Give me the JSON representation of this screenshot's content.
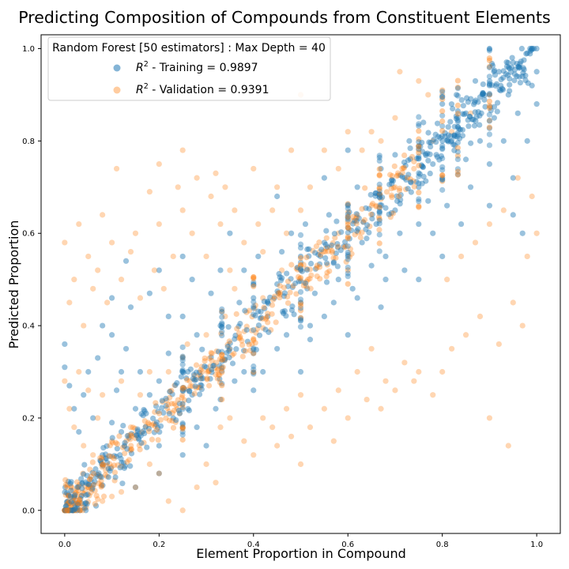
{
  "chart_data": {
    "type": "scatter",
    "title": "Predicting Composition of Compounds from Constituent Elements",
    "xlabel": "Element Proportion in Compound",
    "ylabel": "Predicted Proportion",
    "xlim": [
      -0.05,
      1.05
    ],
    "ylim": [
      -0.05,
      1.03
    ],
    "xticks": [
      "0.0",
      "0.2",
      "0.4",
      "0.6",
      "0.8",
      "1.0"
    ],
    "yticks": [
      "0.0",
      "0.2",
      "0.4",
      "0.6",
      "0.8",
      "1.0"
    ],
    "grid": false,
    "legend": {
      "placement": "top-left",
      "title": "Random Forest [50 estimators] : Max Depth = 40"
    },
    "series": [
      {
        "name_prefix": "R",
        "name_sup": "2",
        "name_suffix": " - Training = 0.9897",
        "color": "#1f77b4",
        "alpha": 0.45,
        "points": [
          [
            0.0,
            0.36
          ],
          [
            0.0,
            0.31
          ],
          [
            0.01,
            0.27
          ],
          [
            0.02,
            0.22
          ],
          [
            0.03,
            0.17
          ],
          [
            0.04,
            0.25
          ],
          [
            0.05,
            0.3
          ],
          [
            0.06,
            0.2
          ],
          [
            0.08,
            0.12
          ],
          [
            0.1,
            0.19
          ],
          [
            0.11,
            0.26
          ],
          [
            0.12,
            0.17
          ],
          [
            0.13,
            0.35
          ],
          [
            0.15,
            0.22
          ],
          [
            0.16,
            0.3
          ],
          [
            0.18,
            0.25
          ],
          [
            0.2,
            0.14
          ],
          [
            0.2,
            0.28
          ],
          [
            0.22,
            0.34
          ],
          [
            0.23,
            0.2
          ],
          [
            0.25,
            0.3
          ],
          [
            0.25,
            0.42
          ],
          [
            0.27,
            0.25
          ],
          [
            0.28,
            0.38
          ],
          [
            0.3,
            0.31
          ],
          [
            0.31,
            0.47
          ],
          [
            0.32,
            0.22
          ],
          [
            0.33,
            0.4
          ],
          [
            0.33,
            0.52
          ],
          [
            0.35,
            0.35
          ],
          [
            0.36,
            0.28
          ],
          [
            0.37,
            0.45
          ],
          [
            0.38,
            0.52
          ],
          [
            0.4,
            0.34
          ],
          [
            0.4,
            0.46
          ],
          [
            0.41,
            0.55
          ],
          [
            0.42,
            0.3
          ],
          [
            0.43,
            0.42
          ],
          [
            0.45,
            0.49
          ],
          [
            0.46,
            0.56
          ],
          [
            0.47,
            0.38
          ],
          [
            0.48,
            0.6
          ],
          [
            0.5,
            0.45
          ],
          [
            0.5,
            0.55
          ],
          [
            0.51,
            0.62
          ],
          [
            0.52,
            0.4
          ],
          [
            0.53,
            0.47
          ],
          [
            0.55,
            0.58
          ],
          [
            0.56,
            0.64
          ],
          [
            0.57,
            0.45
          ],
          [
            0.58,
            0.5
          ],
          [
            0.6,
            0.55
          ],
          [
            0.6,
            0.66
          ],
          [
            0.61,
            0.48
          ],
          [
            0.62,
            0.7
          ],
          [
            0.63,
            0.58
          ],
          [
            0.65,
            0.53
          ],
          [
            0.66,
            0.62
          ],
          [
            0.67,
            0.74
          ],
          [
            0.68,
            0.55
          ],
          [
            0.7,
            0.65
          ],
          [
            0.7,
            0.77
          ],
          [
            0.71,
            0.6
          ],
          [
            0.72,
            0.72
          ],
          [
            0.73,
            0.8
          ],
          [
            0.75,
            0.62
          ],
          [
            0.75,
            0.7
          ],
          [
            0.76,
            0.84
          ],
          [
            0.77,
            0.67
          ],
          [
            0.78,
            0.75
          ],
          [
            0.8,
            0.72
          ],
          [
            0.8,
            0.88
          ],
          [
            0.81,
            0.66
          ],
          [
            0.82,
            0.8
          ],
          [
            0.83,
            0.9
          ],
          [
            0.85,
            0.76
          ],
          [
            0.85,
            0.86
          ],
          [
            0.86,
            0.7
          ],
          [
            0.87,
            0.93
          ],
          [
            0.88,
            0.8
          ],
          [
            0.9,
            0.75
          ],
          [
            0.9,
            0.9
          ],
          [
            0.91,
            0.85
          ],
          [
            0.92,
            0.95
          ],
          [
            0.93,
            0.8
          ],
          [
            0.94,
            0.9
          ],
          [
            0.95,
            0.72
          ],
          [
            0.95,
            0.97
          ],
          [
            0.96,
            0.86
          ],
          [
            0.97,
            0.94
          ],
          [
            0.98,
            0.8
          ],
          [
            0.98,
            0.99
          ],
          [
            0.99,
            0.92
          ],
          [
            1.0,
            1.0
          ],
          [
            1.0,
            0.95
          ],
          [
            1.0,
            0.88
          ],
          [
            0.08,
            0.4
          ],
          [
            0.1,
            0.38
          ],
          [
            0.14,
            0.44
          ],
          [
            0.18,
            0.47
          ],
          [
            0.12,
            0.3
          ],
          [
            0.07,
            0.33
          ],
          [
            0.22,
            0.42
          ],
          [
            0.27,
            0.5
          ],
          [
            0.38,
            0.3
          ],
          [
            0.45,
            0.35
          ],
          [
            0.52,
            0.37
          ],
          [
            0.55,
            0.42
          ],
          [
            0.62,
            0.46
          ],
          [
            0.68,
            0.5
          ],
          [
            0.72,
            0.52
          ],
          [
            0.78,
            0.6
          ],
          [
            0.84,
            0.62
          ],
          [
            0.9,
            0.66
          ],
          [
            0.95,
            0.64
          ],
          [
            0.97,
            0.6
          ],
          [
            0.33,
            0.24
          ],
          [
            0.28,
            0.18
          ],
          [
            0.2,
            0.08
          ],
          [
            0.15,
            0.05
          ],
          [
            0.25,
            0.12
          ],
          [
            0.3,
            0.14
          ],
          [
            0.4,
            0.26
          ],
          [
            0.5,
            0.3
          ],
          [
            0.6,
            0.38
          ],
          [
            0.67,
            0.44
          ],
          [
            0.75,
            0.5
          ],
          [
            0.8,
            0.55
          ],
          [
            0.1,
            0.46
          ],
          [
            0.13,
            0.54
          ],
          [
            0.2,
            0.52
          ],
          [
            0.25,
            0.55
          ],
          [
            0.35,
            0.6
          ],
          [
            0.45,
            0.68
          ],
          [
            0.55,
            0.72
          ],
          [
            0.6,
            0.78
          ]
        ]
      },
      {
        "name_prefix": "R",
        "name_sup": "2",
        "name_suffix": " - Validation = 0.9391",
        "color": "#ff7f0e",
        "alpha": 0.32,
        "points": [
          [
            0.0,
            0.58
          ],
          [
            0.01,
            0.45
          ],
          [
            0.02,
            0.5
          ],
          [
            0.03,
            0.62
          ],
          [
            0.04,
            0.4
          ],
          [
            0.05,
            0.55
          ],
          [
            0.06,
            0.48
          ],
          [
            0.07,
            0.52
          ],
          [
            0.08,
            0.64
          ],
          [
            0.09,
            0.45
          ],
          [
            0.1,
            0.58
          ],
          [
            0.11,
            0.74
          ],
          [
            0.12,
            0.5
          ],
          [
            0.14,
            0.56
          ],
          [
            0.15,
            0.6
          ],
          [
            0.16,
            0.46
          ],
          [
            0.18,
            0.69
          ],
          [
            0.19,
            0.52
          ],
          [
            0.2,
            0.62
          ],
          [
            0.2,
            0.75
          ],
          [
            0.21,
            0.48
          ],
          [
            0.23,
            0.55
          ],
          [
            0.24,
            0.7
          ],
          [
            0.25,
            0.65
          ],
          [
            0.25,
            0.78
          ],
          [
            0.27,
            0.6
          ],
          [
            0.28,
            0.72
          ],
          [
            0.3,
            0.55
          ],
          [
            0.31,
            0.68
          ],
          [
            0.32,
            0.73
          ],
          [
            0.33,
            0.62
          ],
          [
            0.34,
            0.7
          ],
          [
            0.35,
            0.52
          ],
          [
            0.36,
            0.65
          ],
          [
            0.38,
            0.58
          ],
          [
            0.4,
            0.74
          ],
          [
            0.41,
            0.62
          ],
          [
            0.42,
            0.56
          ],
          [
            0.44,
            0.65
          ],
          [
            0.45,
            0.7
          ],
          [
            0.47,
            0.6
          ],
          [
            0.48,
            0.78
          ],
          [
            0.5,
            0.9
          ],
          [
            0.5,
            0.65
          ],
          [
            0.52,
            0.7
          ],
          [
            0.55,
            0.78
          ],
          [
            0.58,
            0.74
          ],
          [
            0.6,
            0.82
          ],
          [
            0.63,
            0.78
          ],
          [
            0.65,
            0.82
          ],
          [
            0.67,
            0.8
          ],
          [
            0.7,
            0.85
          ],
          [
            0.71,
            0.95
          ],
          [
            0.75,
            0.93
          ],
          [
            0.77,
            0.9
          ],
          [
            0.8,
            0.9
          ],
          [
            0.05,
            0.05
          ],
          [
            0.08,
            0.02
          ],
          [
            0.1,
            0.03
          ],
          [
            0.12,
            0.04
          ],
          [
            0.15,
            0.05
          ],
          [
            0.18,
            0.1
          ],
          [
            0.2,
            0.08
          ],
          [
            0.22,
            0.02
          ],
          [
            0.25,
            0.0
          ],
          [
            0.28,
            0.05
          ],
          [
            0.3,
            0.1
          ],
          [
            0.32,
            0.06
          ],
          [
            0.33,
            0.18
          ],
          [
            0.35,
            0.2
          ],
          [
            0.38,
            0.15
          ],
          [
            0.4,
            0.12
          ],
          [
            0.42,
            0.2
          ],
          [
            0.44,
            0.18
          ],
          [
            0.45,
            0.14
          ],
          [
            0.47,
            0.22
          ],
          [
            0.48,
            0.16
          ],
          [
            0.5,
            0.1
          ],
          [
            0.5,
            0.25
          ],
          [
            0.52,
            0.18
          ],
          [
            0.55,
            0.22
          ],
          [
            0.57,
            0.15
          ],
          [
            0.58,
            0.26
          ],
          [
            0.6,
            0.2
          ],
          [
            0.62,
            0.3
          ],
          [
            0.64,
            0.24
          ],
          [
            0.65,
            0.35
          ],
          [
            0.67,
            0.22
          ],
          [
            0.68,
            0.28
          ],
          [
            0.7,
            0.26
          ],
          [
            0.72,
            0.32
          ],
          [
            0.74,
            0.28
          ],
          [
            0.75,
            0.3
          ],
          [
            0.78,
            0.25
          ],
          [
            0.8,
            0.3
          ],
          [
            0.82,
            0.35
          ],
          [
            0.85,
            0.38
          ],
          [
            0.88,
            0.42
          ],
          [
            0.9,
            0.2
          ],
          [
            0.92,
            0.36
          ],
          [
            0.94,
            0.14
          ],
          [
            0.95,
            0.45
          ],
          [
            0.97,
            0.4
          ],
          [
            0.98,
            0.55
          ],
          [
            1.0,
            0.6
          ],
          [
            0.99,
            0.68
          ],
          [
            0.96,
            0.72
          ],
          [
            0.93,
            0.65
          ],
          [
            0.9,
            0.62
          ],
          [
            0.87,
            0.58
          ],
          [
            0.84,
            0.55
          ],
          [
            0.81,
            0.5
          ],
          [
            0.0,
            0.28
          ],
          [
            0.01,
            0.22
          ],
          [
            0.02,
            0.18
          ],
          [
            0.03,
            0.3
          ],
          [
            0.04,
            0.14
          ],
          [
            0.05,
            0.26
          ],
          [
            0.06,
            0.12
          ],
          [
            0.07,
            0.2
          ],
          [
            0.08,
            0.25
          ],
          [
            0.1,
            0.15
          ],
          [
            0.12,
            0.28
          ],
          [
            0.14,
            0.18
          ],
          [
            0.16,
            0.25
          ],
          [
            0.18,
            0.3
          ],
          [
            0.22,
            0.3
          ],
          [
            0.26,
            0.36
          ],
          [
            0.3,
            0.38
          ],
          [
            0.34,
            0.42
          ],
          [
            0.36,
            0.48
          ],
          [
            0.42,
            0.46
          ],
          [
            0.46,
            0.52
          ],
          [
            0.5,
            0.52
          ],
          [
            0.54,
            0.56
          ],
          [
            0.58,
            0.6
          ],
          [
            0.62,
            0.64
          ],
          [
            0.66,
            0.66
          ],
          [
            0.7,
            0.7
          ],
          [
            0.74,
            0.74
          ],
          [
            0.78,
            0.8
          ],
          [
            0.82,
            0.82
          ],
          [
            0.86,
            0.86
          ],
          [
            0.9,
            0.9
          ]
        ]
      }
    ]
  }
}
